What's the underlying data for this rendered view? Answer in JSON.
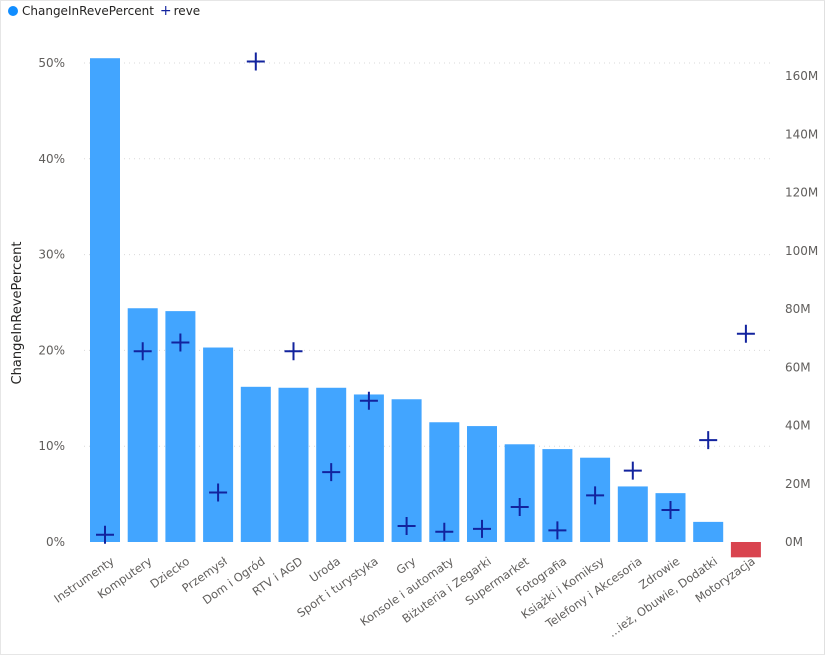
{
  "legend": {
    "series1_label": "ChangeInRevePercent",
    "series1_color": "#118DFF",
    "series2_label": "reve",
    "series2_color": "#12239E"
  },
  "chart_data": {
    "type": "bar",
    "ylabel": "ChangeInRevePercent",
    "ylim": [
      -2,
      52
    ],
    "y2lim": [
      -8,
      172
    ],
    "y_ticks": [
      "0%",
      "10%",
      "20%",
      "30%",
      "40%",
      "50%"
    ],
    "y_tick_values": [
      0,
      10,
      20,
      30,
      40,
      50
    ],
    "y2_ticks": [
      "0M",
      "20M",
      "40M",
      "60M",
      "80M",
      "100M",
      "120M",
      "140M",
      "160M"
    ],
    "y2_tick_values": [
      0,
      20,
      40,
      60,
      80,
      100,
      120,
      140,
      160
    ],
    "grid": true,
    "legend_position": "top-left",
    "bar_color": "#42A5FF",
    "negative_bar_color": "#D9444F",
    "marker_color": "#12239E",
    "categories": [
      "Instrumenty",
      "Komputery",
      "Dziecko",
      "Przemysł",
      "Dom i Ogród",
      "RTV i AGD",
      "Uroda",
      "Sport i turystyka",
      "Gry",
      "Konsole i automaty",
      "Biżuteria i Zegarki",
      "Supermarket",
      "Fotografia",
      "Książki i Komiksy",
      "Telefony i Akcesoria",
      "Zdrowie",
      "...ież, Obuwie, Dodatki",
      "Motoryzacja"
    ],
    "series": [
      {
        "name": "ChangeInRevePercent",
        "values": [
          50.5,
          24.4,
          24.1,
          20.3,
          16.2,
          16.1,
          16.1,
          15.4,
          14.9,
          12.5,
          12.1,
          10.2,
          9.7,
          8.8,
          5.8,
          5.1,
          2.1,
          -1.6
        ]
      },
      {
        "name": "reve",
        "values": [
          2.5,
          65.5,
          68.5,
          17,
          165,
          65.5,
          24,
          48.5,
          5.5,
          3.5,
          4.5,
          12,
          4,
          16,
          24.5,
          11,
          35,
          71.5
        ]
      }
    ]
  }
}
